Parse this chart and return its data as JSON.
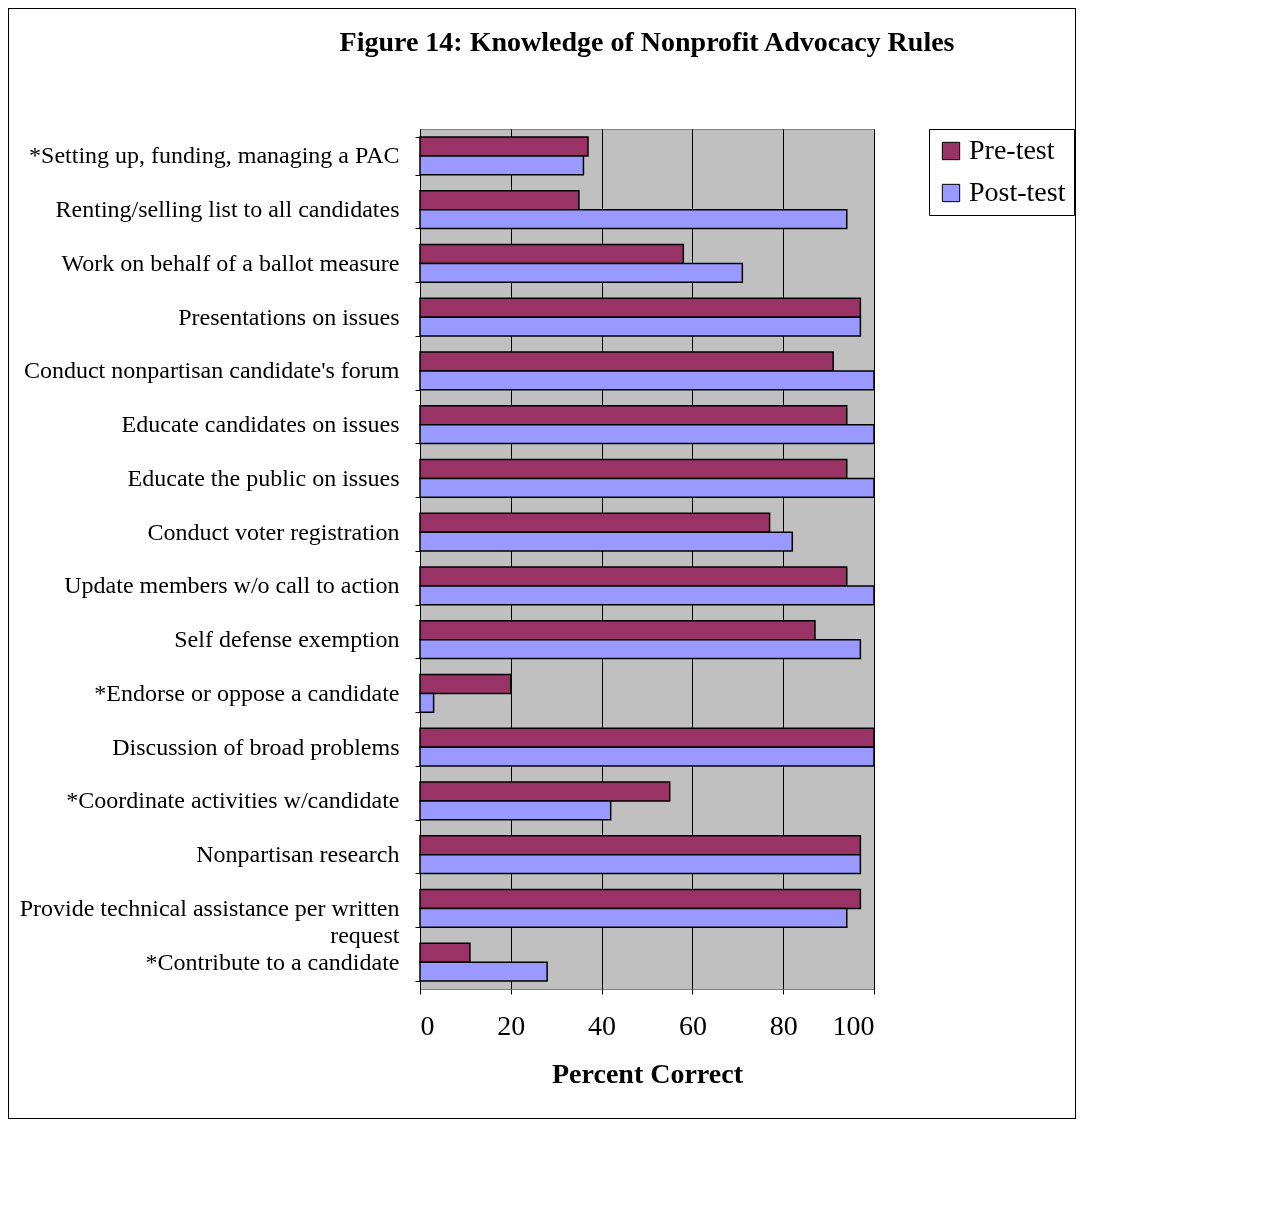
{
  "chart_data": {
    "type": "bar",
    "orientation": "horizontal",
    "title": "Figure 14: Knowledge of Nonprofit Advocacy Rules",
    "xlabel": "Percent Correct",
    "categories": [
      "*Setting up, funding, managing a PAC",
      "Renting/selling list to all candidates",
      "Work on behalf of a ballot measure",
      "Presentations on issues",
      "Conduct nonpartisan candidate's forum",
      "Educate candidates on issues",
      "Educate the public on issues",
      "Conduct voter registration",
      "Update members w/o call to action",
      "Self defense exemption",
      "*Endorse or oppose a candidate",
      "Discussion of broad problems",
      "*Coordinate activities w/candidate",
      "Nonpartisan research",
      "Provide technical assistance per written request",
      "*Contribute to a candidate"
    ],
    "series": [
      {
        "name": "Pre-test",
        "color": "#993366",
        "values": [
          37,
          35,
          58,
          97,
          91,
          94,
          94,
          77,
          94,
          87,
          20,
          100,
          55,
          97,
          97,
          11
        ]
      },
      {
        "name": "Post-test",
        "color": "#9999ff",
        "values": [
          36,
          94,
          71,
          97,
          100,
          100,
          100,
          82,
          100,
          97,
          3,
          100,
          42,
          97,
          94,
          28
        ]
      }
    ],
    "xlim": [
      0,
      100
    ],
    "xticks": [
      0,
      20,
      40,
      60,
      80,
      100
    ],
    "grid": "x",
    "legend": "right"
  }
}
